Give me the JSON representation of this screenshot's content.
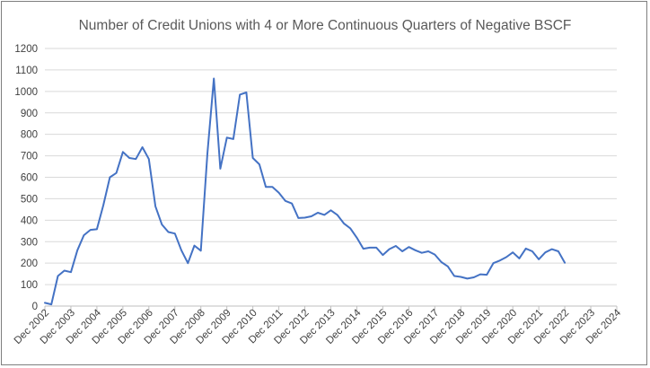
{
  "chart_data": {
    "type": "line",
    "title": "Number of Credit Unions with 4 or More Continuous Quarters of Negative BSCF",
    "xlabel": "",
    "ylabel": "",
    "ylim": [
      0,
      1200
    ],
    "y_ticks": [
      0,
      100,
      200,
      300,
      400,
      500,
      600,
      700,
      800,
      900,
      1000,
      1100,
      1200
    ],
    "x_tick_labels": [
      "Dec 2002",
      "Dec 2003",
      "Dec 2004",
      "Dec 2005",
      "Dec 2006",
      "Dec 2007",
      "Dec 2008",
      "Dec 2009",
      "Dec 2010",
      "Dec 2011",
      "Dec 2012",
      "Dec 2013",
      "Dec 2014",
      "Dec 2015",
      "Dec 2016",
      "Dec 2017",
      "Dec 2018",
      "Dec 2019",
      "Dec 2020",
      "Dec 2021",
      "Dec 2022",
      "Dec 2023",
      "Dec 2024"
    ],
    "grid": true,
    "legend": "none",
    "series": [
      {
        "color": "#4472c4",
        "start_quarter": "Dec 2002",
        "values": [
          15,
          8,
          140,
          165,
          158,
          260,
          330,
          355,
          358,
          470,
          600,
          620,
          718,
          690,
          685,
          740,
          685,
          465,
          380,
          345,
          338,
          260,
          200,
          282,
          258,
          710,
          1060,
          640,
          785,
          778,
          985,
          995,
          690,
          660,
          555,
          555,
          528,
          490,
          478,
          410,
          412,
          418,
          435,
          425,
          446,
          425,
          385,
          362,
          318,
          267,
          272,
          272,
          238,
          265,
          280,
          255,
          275,
          260,
          248,
          255,
          240,
          205,
          185,
          140,
          136,
          128,
          134,
          148,
          146,
          200,
          212,
          228,
          250,
          222,
          268,
          255,
          218,
          250,
          265,
          255,
          202
        ]
      }
    ]
  }
}
